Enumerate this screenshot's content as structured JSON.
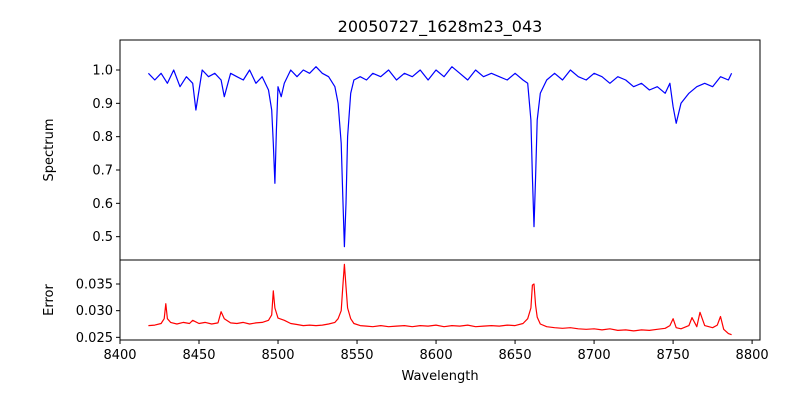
{
  "chart_data": [
    {
      "type": "line",
      "panel": "top",
      "title": "20050727_1628m23_043",
      "xlabel": "",
      "ylabel": "Spectrum",
      "xlim": [
        8400,
        8805
      ],
      "ylim": [
        0.43,
        1.09
      ],
      "xticks": [
        8400,
        8450,
        8500,
        8550,
        8600,
        8650,
        8700,
        8750,
        8800
      ],
      "yticks": [
        0.5,
        0.6,
        0.7,
        0.8,
        0.9,
        1.0
      ],
      "ytick_labels": [
        "0.5",
        "0.6",
        "0.7",
        "0.8",
        "0.9",
        "1.0"
      ],
      "grid": false,
      "series": [
        {
          "color": "#0000ff",
          "x": [
            8418,
            8422,
            8426,
            8430,
            8434,
            8438,
            8442,
            8446,
            8448,
            8452,
            8456,
            8460,
            8464,
            8466,
            8470,
            8474,
            8478,
            8482,
            8486,
            8490,
            8494,
            8496,
            8497,
            8498,
            8499,
            8500,
            8502,
            8504,
            8508,
            8512,
            8516,
            8520,
            8524,
            8528,
            8532,
            8536,
            8538,
            8540,
            8541,
            8542,
            8543,
            8544,
            8546,
            8548,
            8552,
            8556,
            8560,
            8565,
            8570,
            8575,
            8580,
            8585,
            8590,
            8595,
            8600,
            8605,
            8610,
            8615,
            8620,
            8625,
            8630,
            8635,
            8640,
            8645,
            8650,
            8655,
            8658,
            8660,
            8661,
            8662,
            8663,
            8664,
            8666,
            8670,
            8675,
            8680,
            8685,
            8690,
            8695,
            8700,
            8705,
            8710,
            8715,
            8720,
            8725,
            8730,
            8735,
            8740,
            8745,
            8748,
            8750,
            8752,
            8755,
            8760,
            8765,
            8770,
            8775,
            8780,
            8785,
            8787
          ],
          "y": [
            0.99,
            0.97,
            0.99,
            0.96,
            1.0,
            0.95,
            0.98,
            0.96,
            0.88,
            1.0,
            0.98,
            0.99,
            0.97,
            0.92,
            0.99,
            0.98,
            0.97,
            1.0,
            0.96,
            0.98,
            0.94,
            0.88,
            0.78,
            0.66,
            0.82,
            0.95,
            0.92,
            0.96,
            1.0,
            0.98,
            1.0,
            0.99,
            1.01,
            0.99,
            0.98,
            0.95,
            0.9,
            0.78,
            0.62,
            0.47,
            0.6,
            0.8,
            0.93,
            0.97,
            0.98,
            0.97,
            0.99,
            0.98,
            1.0,
            0.97,
            0.99,
            0.98,
            1.0,
            0.97,
            1.0,
            0.98,
            1.01,
            0.99,
            0.97,
            1.0,
            0.98,
            0.99,
            0.98,
            0.97,
            0.99,
            0.97,
            0.96,
            0.85,
            0.68,
            0.53,
            0.68,
            0.85,
            0.93,
            0.97,
            0.99,
            0.97,
            1.0,
            0.98,
            0.97,
            0.99,
            0.98,
            0.96,
            0.98,
            0.97,
            0.95,
            0.96,
            0.94,
            0.95,
            0.93,
            0.96,
            0.89,
            0.84,
            0.9,
            0.93,
            0.95,
            0.96,
            0.95,
            0.98,
            0.97,
            0.99
          ]
        }
      ]
    },
    {
      "type": "line",
      "panel": "bottom",
      "title": "",
      "xlabel": "Wavelength",
      "ylabel": "Error",
      "xlim": [
        8400,
        8805
      ],
      "ylim": [
        0.0245,
        0.0395
      ],
      "xticks": [
        8400,
        8450,
        8500,
        8550,
        8600,
        8650,
        8700,
        8750,
        8800
      ],
      "yticks": [
        0.025,
        0.03,
        0.035
      ],
      "ytick_labels": [
        "0.025",
        "0.030",
        "0.035"
      ],
      "grid": false,
      "series": [
        {
          "color": "#ff0000",
          "x": [
            8418,
            8422,
            8426,
            8428,
            8429,
            8430,
            8432,
            8436,
            8440,
            8444,
            8446,
            8450,
            8454,
            8458,
            8462,
            8464,
            8466,
            8470,
            8474,
            8478,
            8482,
            8486,
            8490,
            8494,
            8496,
            8497,
            8498,
            8500,
            8504,
            8508,
            8512,
            8516,
            8520,
            8524,
            8528,
            8532,
            8536,
            8538,
            8540,
            8541,
            8542,
            8543,
            8544,
            8546,
            8548,
            8552,
            8556,
            8560,
            8565,
            8570,
            8575,
            8580,
            8585,
            8590,
            8595,
            8600,
            8605,
            8610,
            8615,
            8620,
            8625,
            8630,
            8635,
            8640,
            8645,
            8650,
            8655,
            8658,
            8660,
            8661,
            8662,
            8663,
            8664,
            8666,
            8670,
            8675,
            8680,
            8685,
            8690,
            8695,
            8700,
            8705,
            8710,
            8715,
            8720,
            8725,
            8730,
            8735,
            8740,
            8745,
            8748,
            8750,
            8752,
            8755,
            8760,
            8762,
            8765,
            8767,
            8770,
            8775,
            8778,
            8780,
            8782,
            8785,
            8787
          ],
          "y": [
            0.0272,
            0.0273,
            0.0276,
            0.0285,
            0.0313,
            0.0285,
            0.0278,
            0.0275,
            0.0278,
            0.0276,
            0.0282,
            0.0276,
            0.0278,
            0.0275,
            0.0277,
            0.0298,
            0.0285,
            0.0277,
            0.0276,
            0.0278,
            0.0275,
            0.0277,
            0.0278,
            0.0282,
            0.0292,
            0.0337,
            0.0305,
            0.0286,
            0.0282,
            0.0276,
            0.0274,
            0.0272,
            0.0273,
            0.0272,
            0.0273,
            0.0275,
            0.0278,
            0.0285,
            0.03,
            0.0345,
            0.0387,
            0.0345,
            0.0305,
            0.0285,
            0.0276,
            0.0272,
            0.0271,
            0.027,
            0.0272,
            0.027,
            0.0271,
            0.0272,
            0.027,
            0.0272,
            0.0271,
            0.0273,
            0.027,
            0.0272,
            0.0271,
            0.0273,
            0.027,
            0.0271,
            0.0272,
            0.0271,
            0.0273,
            0.0272,
            0.0276,
            0.0285,
            0.0305,
            0.0348,
            0.035,
            0.031,
            0.0288,
            0.0275,
            0.027,
            0.0268,
            0.0267,
            0.0268,
            0.0266,
            0.0265,
            0.0266,
            0.0264,
            0.0266,
            0.0263,
            0.0264,
            0.0262,
            0.0264,
            0.0263,
            0.0265,
            0.0267,
            0.0272,
            0.0285,
            0.0268,
            0.0266,
            0.0272,
            0.0287,
            0.027,
            0.0297,
            0.0272,
            0.0268,
            0.0273,
            0.0289,
            0.0265,
            0.0257,
            0.0255
          ]
        }
      ]
    }
  ]
}
